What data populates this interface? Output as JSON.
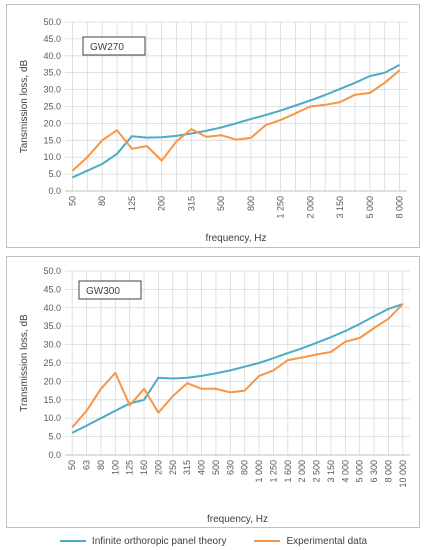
{
  "chart_data": [
    {
      "type": "line",
      "title": "GW270",
      "xlabel": "frequency, Hz",
      "ylabel": "Tansmission loss, dB",
      "ylim": [
        0,
        50
      ],
      "yticks": [
        "0.0",
        "5.0",
        "10.0",
        "15.0",
        "20.0",
        "25.0",
        "30.0",
        "35.0",
        "40.0",
        "45.0",
        "50.0"
      ],
      "categories": [
        "50",
        "63",
        "80",
        "100",
        "125",
        "160",
        "200",
        "250",
        "315",
        "400",
        "500",
        "630",
        "800",
        "1 000",
        "1 250",
        "1 600",
        "2 000",
        "2 500",
        "3 150",
        "4 000",
        "5 000",
        "6 300",
        "8 000"
      ],
      "tick_labels": [
        "50",
        "",
        "80",
        "",
        "125",
        "",
        "200",
        "",
        "315",
        "",
        "500",
        "",
        "800",
        "",
        "1 250",
        "",
        "2 000",
        "",
        "3 150",
        "",
        "5 000",
        "",
        "8 000"
      ],
      "grid": true,
      "series": [
        {
          "name": "Infinite orthoropic panel theory",
          "color": "#4bacc6",
          "values": [
            4.0,
            6.0,
            8.0,
            11.0,
            16.2,
            15.8,
            15.9,
            16.3,
            17.0,
            17.8,
            18.8,
            20.0,
            21.3,
            22.5,
            23.8,
            25.3,
            26.8,
            28.4,
            30.2,
            32.0,
            34.0,
            35.0,
            37.3
          ]
        },
        {
          "name": "Experimental data",
          "color": "#f79646",
          "values": [
            6.0,
            10.0,
            15.0,
            18.0,
            12.5,
            13.3,
            9.0,
            14.7,
            18.3,
            16.0,
            16.5,
            15.2,
            15.7,
            19.5,
            21.0,
            23.0,
            25.0,
            25.5,
            26.3,
            28.5,
            29.0,
            32.0,
            35.7
          ]
        }
      ]
    },
    {
      "type": "line",
      "title": "GW300",
      "xlabel": "frequency, Hz",
      "ylabel": "Transmission loss, dB",
      "ylim": [
        0,
        50
      ],
      "yticks": [
        "0.0",
        "5.0",
        "10.0",
        "15.0",
        "20.0",
        "25.0",
        "30.0",
        "35.0",
        "40.0",
        "45.0",
        "50.0"
      ],
      "categories": [
        "50",
        "63",
        "80",
        "100",
        "125",
        "160",
        "200",
        "250",
        "315",
        "400",
        "500",
        "630",
        "800",
        "1 000",
        "1 250",
        "1 600",
        "2 000",
        "2 500",
        "3 150",
        "4 000",
        "5 000",
        "6 300",
        "8 000",
        "10 000"
      ],
      "tick_labels": [
        "50",
        "63",
        "80",
        "100",
        "125",
        "160",
        "200",
        "250",
        "315",
        "400",
        "500",
        "630",
        "800",
        "1 000",
        "1 250",
        "1 600",
        "2 000",
        "2 500",
        "3 150",
        "4 000",
        "5 000",
        "6 300",
        "8 000",
        "10 000"
      ],
      "grid": true,
      "series": [
        {
          "name": "Infinite orthoropic panel theory",
          "color": "#4bacc6",
          "values": [
            6.0,
            8.0,
            10.0,
            12.0,
            14.0,
            15.0,
            21.0,
            20.8,
            21.0,
            21.5,
            22.2,
            23.0,
            24.0,
            25.0,
            26.3,
            27.7,
            29.0,
            30.5,
            32.0,
            33.7,
            35.6,
            37.7,
            39.7,
            41.0
          ]
        },
        {
          "name": "Experimental data",
          "color": "#f79646",
          "values": [
            7.5,
            12.0,
            18.0,
            22.3,
            13.5,
            18.0,
            11.5,
            16.0,
            19.5,
            18.0,
            18.0,
            17.0,
            17.5,
            21.5,
            23.0,
            25.8,
            26.5,
            27.3,
            28.0,
            30.8,
            31.8,
            34.5,
            37.0,
            41.0
          ]
        }
      ]
    }
  ],
  "legend": {
    "items": [
      {
        "label": "Infinite orthoropic panel theory",
        "color": "#4bacc6"
      },
      {
        "label": "Experimental data",
        "color": "#f79646"
      }
    ]
  }
}
